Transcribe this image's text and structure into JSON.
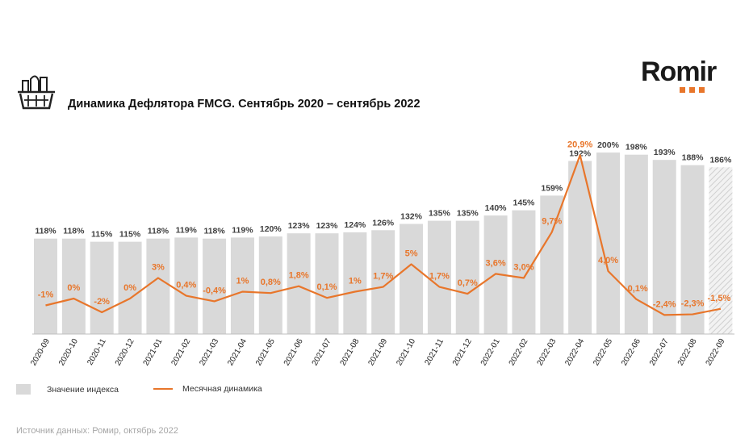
{
  "header": {
    "title": "Динамика Дефлятора FMCG. Сентябрь 2020 – сентябрь 2022",
    "logo": "Romir"
  },
  "colors": {
    "bar": "#d9d9d9",
    "line": "#e8762b",
    "bar_label": "#404040"
  },
  "chart_data": {
    "type": "bar",
    "categories": [
      "2020-09",
      "2020-10",
      "2020-11",
      "2020-12",
      "2021-01",
      "2021-02",
      "2021-03",
      "2021-04",
      "2021-05",
      "2021-06",
      "2021-07",
      "2021-08",
      "2021-09",
      "2021-10",
      "2021-11",
      "2021-12",
      "2022-01",
      "2022-02",
      "2022-03",
      "2022-04",
      "2022-05",
      "2022-06",
      "2022-07",
      "2022-08",
      "2022-09"
    ],
    "series": [
      {
        "name": "Значение индекса",
        "type": "bar",
        "values": [
          118,
          118,
          115,
          115,
          118,
          119,
          118,
          119,
          120,
          123,
          123,
          124,
          126,
          132,
          135,
          135,
          140,
          145,
          159,
          192,
          200,
          198,
          193,
          188,
          186
        ],
        "labels": [
          "118%",
          "118%",
          "115%",
          "115%",
          "118%",
          "119%",
          "118%",
          "119%",
          "120%",
          "123%",
          "123%",
          "124%",
          "126%",
          "132%",
          "135%",
          "135%",
          "140%",
          "145%",
          "159%",
          "192%",
          "200%",
          "198%",
          "193%",
          "188%",
          "186%"
        ]
      },
      {
        "name": "Месячная динамика",
        "type": "line",
        "values": [
          -1,
          0,
          -2,
          0,
          3,
          0.4,
          -0.4,
          1,
          0.8,
          1.8,
          0.1,
          1,
          1.7,
          5,
          1.7,
          0.7,
          3.6,
          3.0,
          9.7,
          20.9,
          4.0,
          -0.1,
          -2.4,
          -2.3,
          -1.5
        ],
        "labels": [
          "-1%",
          "0%",
          "-2%",
          "0%",
          "3%",
          "0,4%",
          "-0,4%",
          "1%",
          "0,8%",
          "1,8%",
          "0,1%",
          "1%",
          "1,7%",
          "5%",
          "1,7%",
          "0,7%",
          "3,6%",
          "3,0%",
          "9,7%",
          "20,9%",
          "4,0%",
          "-0,1%",
          "-2,4%",
          "-2,3%",
          "-1,5%"
        ]
      }
    ],
    "hatched_last_bar": true
  },
  "legend": {
    "bars": "Значение индекса",
    "line": "Месячная динамика"
  },
  "source": "Источник данных: Ромир, октябрь 2022"
}
